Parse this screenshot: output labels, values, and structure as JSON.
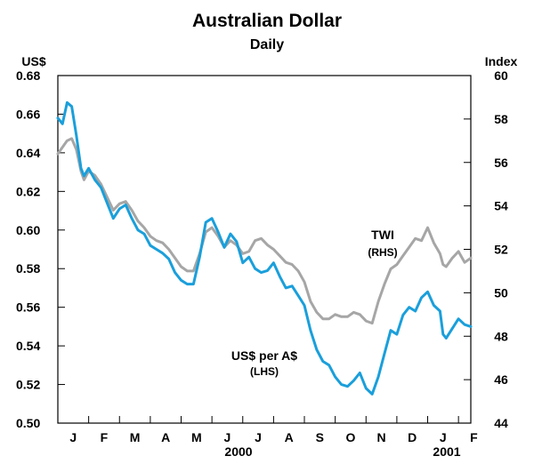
{
  "chart_data": {
    "type": "line",
    "title": "Australian Dollar",
    "subtitle": "Daily",
    "left_axis": {
      "unit": "US$",
      "min": 0.5,
      "max": 0.68,
      "ticks": [
        "0.50",
        "0.52",
        "0.54",
        "0.56",
        "0.58",
        "0.60",
        "0.62",
        "0.64",
        "0.66",
        "0.68"
      ]
    },
    "right_axis": {
      "unit": "Index",
      "min": 44,
      "max": 60,
      "ticks": [
        "44",
        "46",
        "48",
        "50",
        "52",
        "54",
        "56",
        "58",
        "60"
      ]
    },
    "x_axis": {
      "month_labels": [
        "J",
        "F",
        "M",
        "A",
        "M",
        "J",
        "J",
        "A",
        "S",
        "O",
        "N",
        "D",
        "J",
        "F"
      ],
      "years": [
        {
          "label": "2000",
          "month_index": 5.5
        },
        {
          "label": "2001",
          "month_index": 12.5
        }
      ],
      "range_months": [
        0,
        13.4
      ]
    },
    "series": [
      {
        "name": "US$ per A$",
        "axis": "LHS",
        "color": "#1a9fdb",
        "label": "US$ per A$",
        "label_sub": "(LHS)",
        "x": [
          0.0,
          0.15,
          0.3,
          0.45,
          0.6,
          0.75,
          0.85,
          1.0,
          1.2,
          1.4,
          1.6,
          1.8,
          2.0,
          2.2,
          2.4,
          2.6,
          2.8,
          3.0,
          3.2,
          3.4,
          3.6,
          3.8,
          4.0,
          4.2,
          4.4,
          4.6,
          4.8,
          5.0,
          5.2,
          5.4,
          5.6,
          5.8,
          6.0,
          6.2,
          6.4,
          6.6,
          6.8,
          7.0,
          7.2,
          7.4,
          7.6,
          7.8,
          8.0,
          8.2,
          8.4,
          8.6,
          8.8,
          9.0,
          9.2,
          9.4,
          9.6,
          9.8,
          10.0,
          10.2,
          10.4,
          10.6,
          10.8,
          11.0,
          11.2,
          11.4,
          11.6,
          11.8,
          12.0,
          12.2,
          12.4,
          12.5,
          12.6,
          12.8,
          13.0,
          13.2,
          13.4
        ],
        "values": [
          0.658,
          0.655,
          0.666,
          0.664,
          0.649,
          0.632,
          0.628,
          0.632,
          0.626,
          0.622,
          0.614,
          0.606,
          0.611,
          0.613,
          0.606,
          0.6,
          0.598,
          0.592,
          0.59,
          0.588,
          0.585,
          0.578,
          0.574,
          0.572,
          0.572,
          0.586,
          0.604,
          0.606,
          0.599,
          0.591,
          0.598,
          0.594,
          0.583,
          0.586,
          0.58,
          0.578,
          0.579,
          0.583,
          0.576,
          0.57,
          0.571,
          0.566,
          0.561,
          0.548,
          0.538,
          0.532,
          0.53,
          0.524,
          0.52,
          0.519,
          0.522,
          0.526,
          0.518,
          0.515,
          0.524,
          0.536,
          0.548,
          0.546,
          0.556,
          0.56,
          0.558,
          0.565,
          0.568,
          0.561,
          0.558,
          0.546,
          0.544,
          0.549,
          0.554,
          0.551,
          0.55
        ]
      },
      {
        "name": "TWI",
        "axis": "RHS",
        "color": "#a6a6a6",
        "label": "TWI",
        "label_sub": "(RHS)",
        "x": [
          0.0,
          0.15,
          0.3,
          0.45,
          0.6,
          0.75,
          0.85,
          1.0,
          1.2,
          1.4,
          1.6,
          1.8,
          2.0,
          2.2,
          2.4,
          2.6,
          2.8,
          3.0,
          3.2,
          3.4,
          3.6,
          3.8,
          4.0,
          4.2,
          4.4,
          4.6,
          4.8,
          5.0,
          5.2,
          5.4,
          5.6,
          5.8,
          6.0,
          6.2,
          6.4,
          6.6,
          6.8,
          7.0,
          7.2,
          7.4,
          7.6,
          7.8,
          8.0,
          8.2,
          8.4,
          8.6,
          8.8,
          9.0,
          9.2,
          9.4,
          9.6,
          9.8,
          10.0,
          10.2,
          10.4,
          10.6,
          10.8,
          11.0,
          11.2,
          11.4,
          11.6,
          11.8,
          12.0,
          12.2,
          12.4,
          12.5,
          12.6,
          12.8,
          13.0,
          13.2,
          13.4
        ],
        "values": [
          56.4,
          56.7,
          57.0,
          57.1,
          56.6,
          55.6,
          55.2,
          55.6,
          55.4,
          55.0,
          54.4,
          53.8,
          54.1,
          54.2,
          53.8,
          53.3,
          53.0,
          52.6,
          52.4,
          52.3,
          52.0,
          51.6,
          51.2,
          51.0,
          51.0,
          51.8,
          52.8,
          53.0,
          52.6,
          52.1,
          52.4,
          52.2,
          51.8,
          51.9,
          52.4,
          52.5,
          52.2,
          52.0,
          51.7,
          51.4,
          51.3,
          51.0,
          50.5,
          49.6,
          49.1,
          48.8,
          48.8,
          49.0,
          48.9,
          48.9,
          49.1,
          49.0,
          48.7,
          48.6,
          49.6,
          50.4,
          51.1,
          51.3,
          51.7,
          52.1,
          52.5,
          52.4,
          53.0,
          52.3,
          51.8,
          51.3,
          51.2,
          51.6,
          51.9,
          51.4,
          51.6
        ]
      }
    ],
    "annotations": [
      {
        "series": "TWI",
        "text": "TWI",
        "sub": "(RHS)"
      },
      {
        "series": "US$ per A$",
        "text": "US$ per A$",
        "sub": "(LHS)"
      }
    ],
    "grid": false,
    "legend": "none"
  }
}
